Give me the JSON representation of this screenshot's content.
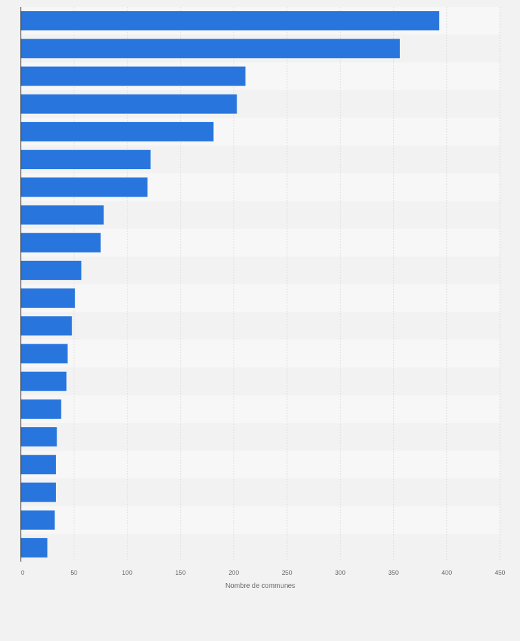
{
  "chart_data": {
    "type": "bar",
    "orientation": "horizontal",
    "xlabel": "Nombre de communes",
    "ylabel": "",
    "xlim": [
      0,
      450
    ],
    "x_ticks": [
      "0",
      "50",
      "100",
      "150",
      "200",
      "250",
      "300",
      "350",
      "400",
      "450"
    ],
    "grid": true,
    "categories": [
      "",
      "",
      "",
      "",
      "",
      "",
      "",
      "",
      "",
      "",
      "",
      "",
      "",
      "",
      "",
      "",
      "",
      "",
      "",
      ""
    ],
    "values": [
      393,
      356,
      211,
      203,
      181,
      122,
      119,
      78,
      75,
      57,
      51,
      48,
      44,
      43,
      38,
      34,
      33,
      33,
      32,
      25
    ],
    "colors": {
      "bar": "#2876dd",
      "band_light": "#f7f7f7",
      "band_dark": "#f2f2f2",
      "grid": "#dedede",
      "axis": "#333333",
      "text": "#666666"
    }
  }
}
